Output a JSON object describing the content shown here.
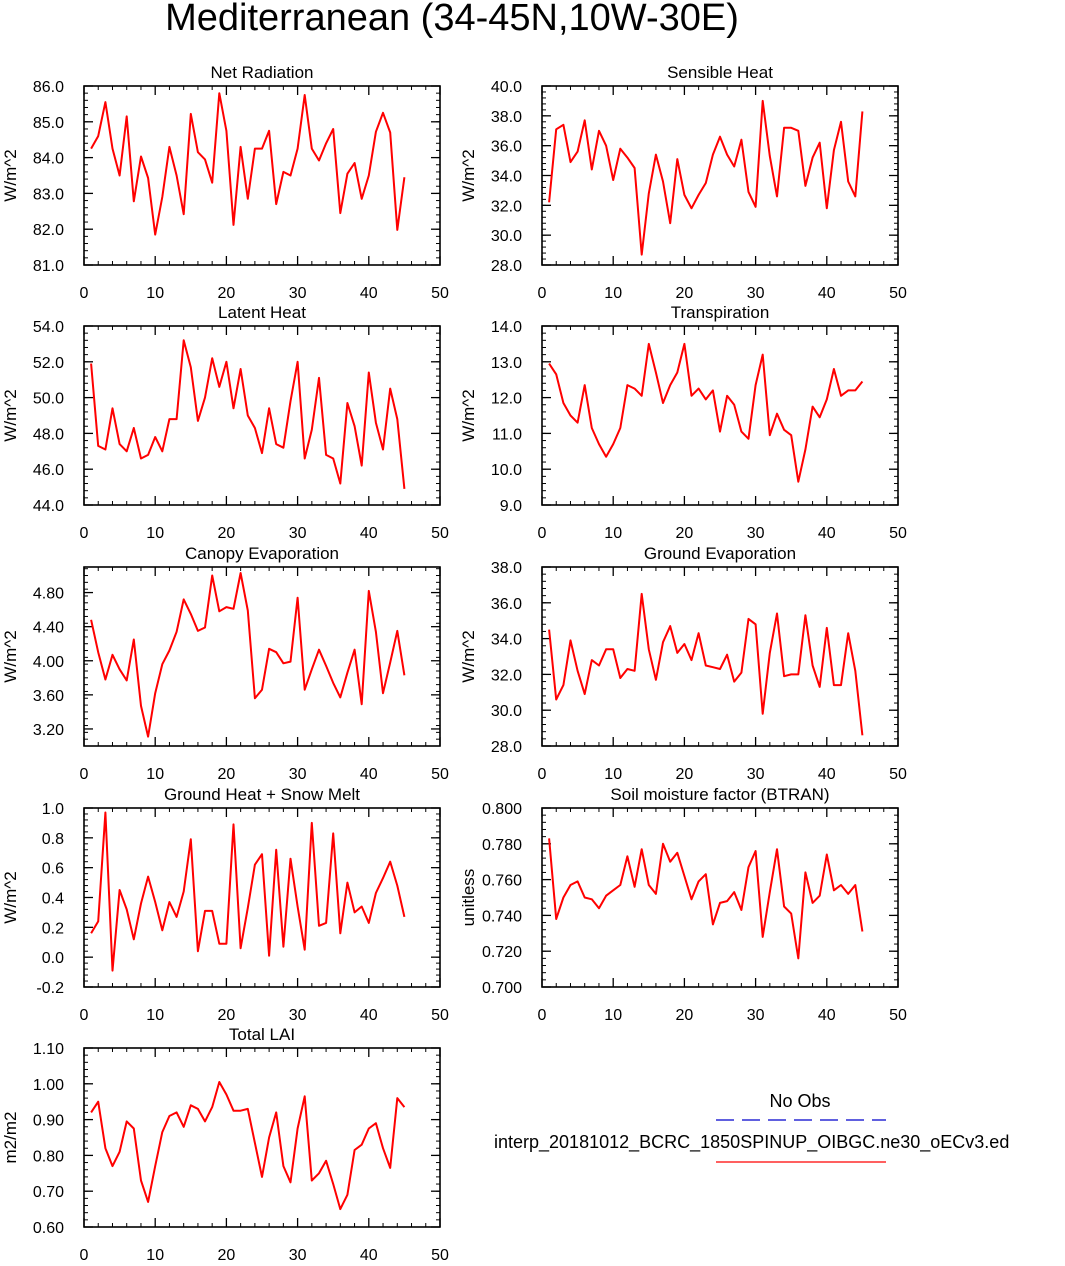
{
  "page": {
    "title": "Mediterranean (34-45N,10W-30E)"
  },
  "legend": {
    "obs_label": "No Obs",
    "model_label": "interp_20181012_BCRC_1850SPINUP_OIBGC.ne30_oECv3.ed",
    "obs_color": "#0000cc",
    "model_color": "#ff0000"
  },
  "chart_data": [
    {
      "type": "line",
      "title": "Net Radiation",
      "ylabel": "W/m^2",
      "xlim": [
        0,
        50
      ],
      "ylim": [
        81.0,
        86.0
      ],
      "xticks": [
        "0",
        "10",
        "20",
        "30",
        "40",
        "50"
      ],
      "yticks": [
        "81.0",
        "82.0",
        "83.0",
        "84.0",
        "85.0",
        "86.0"
      ],
      "x": [
        1,
        2,
        3,
        4,
        5,
        6,
        7,
        8,
        9,
        10,
        11,
        12,
        13,
        14,
        15,
        16,
        17,
        18,
        19,
        20,
        21,
        22,
        23,
        24,
        25,
        26,
        27,
        28,
        29,
        30,
        31,
        32,
        33,
        34,
        35,
        36,
        37,
        38,
        39,
        40,
        41,
        42,
        43,
        44,
        45
      ],
      "series": [
        {
          "values": [
            84.25,
            84.6,
            85.55,
            84.25,
            83.5,
            85.15,
            82.78,
            84.03,
            83.43,
            81.85,
            82.9,
            84.3,
            83.5,
            82.42,
            85.22,
            84.15,
            83.95,
            83.3,
            85.8,
            84.75,
            82.12,
            84.3,
            82.85,
            84.25,
            84.25,
            84.75,
            82.7,
            83.6,
            83.5,
            84.25,
            85.75,
            84.25,
            83.92,
            84.4,
            84.8,
            82.45,
            83.55,
            83.85,
            82.85,
            83.5,
            84.72,
            85.25,
            84.7,
            81.98,
            83.45
          ]
        }
      ]
    },
    {
      "type": "line",
      "title": "Sensible Heat",
      "ylabel": "W/m^2",
      "xlim": [
        0,
        50
      ],
      "ylim": [
        28.0,
        40.0
      ],
      "xticks": [
        "0",
        "10",
        "20",
        "30",
        "40",
        "50"
      ],
      "yticks": [
        "28.0",
        "30.0",
        "32.0",
        "34.0",
        "36.0",
        "38.0",
        "40.0"
      ],
      "x": [
        1,
        2,
        3,
        4,
        5,
        6,
        7,
        8,
        9,
        10,
        11,
        12,
        13,
        14,
        15,
        16,
        17,
        18,
        19,
        20,
        21,
        22,
        23,
        24,
        25,
        26,
        27,
        28,
        29,
        30,
        31,
        32,
        33,
        34,
        35,
        36,
        37,
        38,
        39,
        40,
        41,
        42,
        43,
        44,
        45
      ],
      "series": [
        {
          "values": [
            32.2,
            37.1,
            37.4,
            34.9,
            35.6,
            37.7,
            34.4,
            37.0,
            36.0,
            33.7,
            35.8,
            35.2,
            34.5,
            28.7,
            32.8,
            35.4,
            33.6,
            30.8,
            35.1,
            32.7,
            31.8,
            32.7,
            33.5,
            35.4,
            36.6,
            35.4,
            34.6,
            36.4,
            32.9,
            31.9,
            39.0,
            35.3,
            32.6,
            37.2,
            37.2,
            37.0,
            33.3,
            35.2,
            36.2,
            31.8,
            35.7,
            37.6,
            33.6,
            32.6,
            38.3
          ]
        }
      ]
    },
    {
      "type": "line",
      "title": "Latent Heat",
      "ylabel": "W/m^2",
      "xlim": [
        0,
        50
      ],
      "ylim": [
        44.0,
        54.0
      ],
      "xticks": [
        "0",
        "10",
        "20",
        "30",
        "40",
        "50"
      ],
      "yticks": [
        "44.0",
        "46.0",
        "48.0",
        "50.0",
        "52.0",
        "54.0"
      ],
      "x": [
        1,
        2,
        3,
        4,
        5,
        6,
        7,
        8,
        9,
        10,
        11,
        12,
        13,
        14,
        15,
        16,
        17,
        18,
        19,
        20,
        21,
        22,
        23,
        24,
        25,
        26,
        27,
        28,
        29,
        30,
        31,
        32,
        33,
        34,
        35,
        36,
        37,
        38,
        39,
        40,
        41,
        42,
        43,
        44,
        45
      ],
      "series": [
        {
          "values": [
            51.9,
            47.3,
            47.1,
            49.4,
            47.4,
            47.0,
            48.3,
            46.6,
            46.8,
            47.8,
            47.0,
            48.8,
            48.8,
            53.2,
            51.7,
            48.7,
            50.0,
            52.2,
            50.6,
            52.0,
            49.4,
            51.6,
            49.0,
            48.3,
            46.9,
            49.4,
            47.4,
            47.2,
            49.8,
            52.0,
            46.6,
            48.2,
            51.1,
            46.8,
            46.6,
            45.2,
            49.7,
            48.4,
            46.2,
            51.4,
            48.6,
            47.1,
            50.5,
            48.8,
            44.9
          ]
        }
      ]
    },
    {
      "type": "line",
      "title": "Transpiration",
      "ylabel": "W/m^2",
      "xlim": [
        0,
        50
      ],
      "ylim": [
        9.0,
        14.0
      ],
      "xticks": [
        "0",
        "10",
        "20",
        "30",
        "40",
        "50"
      ],
      "yticks": [
        "9.0",
        "10.0",
        "11.0",
        "12.0",
        "13.0",
        "14.0"
      ],
      "x": [
        1,
        2,
        3,
        4,
        5,
        6,
        7,
        8,
        9,
        10,
        11,
        12,
        13,
        14,
        15,
        16,
        17,
        18,
        19,
        20,
        21,
        22,
        23,
        24,
        25,
        26,
        27,
        28,
        29,
        30,
        31,
        32,
        33,
        34,
        35,
        36,
        37,
        38,
        39,
        40,
        41,
        42,
        43,
        44,
        45
      ],
      "series": [
        {
          "values": [
            12.95,
            12.65,
            11.85,
            11.5,
            11.3,
            12.35,
            11.15,
            10.7,
            10.35,
            10.7,
            11.15,
            12.35,
            12.25,
            12.05,
            13.5,
            12.7,
            11.85,
            12.35,
            12.7,
            13.5,
            12.05,
            12.25,
            11.95,
            12.2,
            11.05,
            12.05,
            11.8,
            11.05,
            10.85,
            12.35,
            13.2,
            10.95,
            11.55,
            11.1,
            10.95,
            9.65,
            10.55,
            11.75,
            11.45,
            11.95,
            12.8,
            12.05,
            12.2,
            12.2,
            12.45
          ]
        }
      ]
    },
    {
      "type": "line",
      "title": "Canopy Evaporation",
      "ylabel": "W/m^2",
      "xlim": [
        0,
        50
      ],
      "ylim": [
        3.0,
        5.1
      ],
      "xticks": [
        "0",
        "10",
        "20",
        "30",
        "40",
        "50"
      ],
      "yticks": [
        "3.20",
        "3.60",
        "4.00",
        "4.40",
        "4.80"
      ],
      "ytick_values": [
        3.2,
        3.6,
        4.0,
        4.4,
        4.8
      ],
      "x": [
        1,
        2,
        3,
        4,
        5,
        6,
        7,
        8,
        9,
        10,
        11,
        12,
        13,
        14,
        15,
        16,
        17,
        18,
        19,
        20,
        21,
        22,
        23,
        24,
        25,
        26,
        27,
        28,
        29,
        30,
        31,
        32,
        33,
        34,
        35,
        36,
        37,
        38,
        39,
        40,
        41,
        42,
        43,
        44,
        45
      ],
      "series": [
        {
          "values": [
            4.48,
            4.1,
            3.78,
            4.07,
            3.9,
            3.77,
            4.25,
            3.47,
            3.11,
            3.62,
            3.96,
            4.12,
            4.34,
            4.72,
            4.55,
            4.35,
            4.39,
            5.0,
            4.58,
            4.63,
            4.61,
            5.03,
            4.59,
            3.56,
            3.66,
            4.14,
            4.1,
            3.97,
            3.99,
            4.74,
            3.66,
            3.9,
            4.13,
            3.94,
            3.74,
            3.57,
            3.86,
            4.13,
            3.49,
            4.82,
            4.34,
            3.62,
            3.98,
            4.35,
            3.83
          ]
        }
      ]
    },
    {
      "type": "line",
      "title": "Ground Evaporation",
      "ylabel": "W/m^2",
      "xlim": [
        0,
        50
      ],
      "ylim": [
        28.0,
        38.0
      ],
      "xticks": [
        "0",
        "10",
        "20",
        "30",
        "40",
        "50"
      ],
      "yticks": [
        "28.0",
        "30.0",
        "32.0",
        "34.0",
        "36.0",
        "38.0"
      ],
      "x": [
        1,
        2,
        3,
        4,
        5,
        6,
        7,
        8,
        9,
        10,
        11,
        12,
        13,
        14,
        15,
        16,
        17,
        18,
        19,
        20,
        21,
        22,
        23,
        24,
        25,
        26,
        27,
        28,
        29,
        30,
        31,
        32,
        33,
        34,
        35,
        36,
        37,
        38,
        39,
        40,
        41,
        42,
        43,
        44,
        45
      ],
      "series": [
        {
          "values": [
            34.5,
            30.6,
            31.4,
            33.9,
            32.2,
            30.9,
            32.8,
            32.5,
            33.4,
            33.4,
            31.8,
            32.3,
            32.2,
            36.5,
            33.4,
            31.7,
            33.8,
            34.7,
            33.2,
            33.7,
            32.8,
            34.3,
            32.5,
            32.4,
            32.3,
            33.1,
            31.6,
            32.1,
            35.1,
            34.8,
            29.8,
            33.2,
            35.4,
            31.9,
            32.0,
            32.0,
            35.3,
            32.5,
            31.3,
            34.6,
            31.4,
            31.4,
            34.3,
            32.2,
            28.6
          ]
        }
      ]
    },
    {
      "type": "line",
      "title": "Ground Heat + Snow Melt",
      "ylabel": "W/m^2",
      "xlim": [
        0,
        50
      ],
      "ylim": [
        -0.2,
        1.0
      ],
      "xticks": [
        "0",
        "10",
        "20",
        "30",
        "40",
        "50"
      ],
      "yticks": [
        "-0.2",
        "0.0",
        "0.2",
        "0.4",
        "0.6",
        "0.8",
        "1.0"
      ],
      "x": [
        1,
        2,
        3,
        4,
        5,
        6,
        7,
        8,
        9,
        10,
        11,
        12,
        13,
        14,
        15,
        16,
        17,
        18,
        19,
        20,
        21,
        22,
        23,
        24,
        25,
        26,
        27,
        28,
        29,
        30,
        31,
        32,
        33,
        34,
        35,
        36,
        37,
        38,
        39,
        40,
        41,
        42,
        43,
        44,
        45
      ],
      "series": [
        {
          "values": [
            0.16,
            0.24,
            0.97,
            -0.09,
            0.45,
            0.32,
            0.12,
            0.36,
            0.54,
            0.37,
            0.18,
            0.37,
            0.27,
            0.44,
            0.79,
            0.04,
            0.31,
            0.31,
            0.09,
            0.09,
            0.89,
            0.06,
            0.33,
            0.62,
            0.69,
            0.01,
            0.72,
            0.07,
            0.66,
            0.34,
            0.05,
            0.9,
            0.21,
            0.23,
            0.83,
            0.16,
            0.5,
            0.3,
            0.34,
            0.23,
            0.43,
            0.53,
            0.64,
            0.48,
            0.27
          ]
        }
      ]
    },
    {
      "type": "line",
      "title": "Soil moisture factor (BTRAN)",
      "ylabel": "unitless",
      "xlim": [
        0,
        50
      ],
      "ylim": [
        0.7,
        0.8
      ],
      "xticks": [
        "0",
        "10",
        "20",
        "30",
        "40",
        "50"
      ],
      "yticks": [
        "0.700",
        "0.720",
        "0.740",
        "0.760",
        "0.780",
        "0.800"
      ],
      "x": [
        1,
        2,
        3,
        4,
        5,
        6,
        7,
        8,
        9,
        10,
        11,
        12,
        13,
        14,
        15,
        16,
        17,
        18,
        19,
        20,
        21,
        22,
        23,
        24,
        25,
        26,
        27,
        28,
        29,
        30,
        31,
        32,
        33,
        34,
        35,
        36,
        37,
        38,
        39,
        40,
        41,
        42,
        43,
        44,
        45
      ],
      "series": [
        {
          "values": [
            0.783,
            0.738,
            0.75,
            0.757,
            0.759,
            0.75,
            0.749,
            0.744,
            0.751,
            0.754,
            0.757,
            0.773,
            0.756,
            0.777,
            0.757,
            0.752,
            0.78,
            0.77,
            0.775,
            0.762,
            0.749,
            0.759,
            0.763,
            0.735,
            0.747,
            0.748,
            0.753,
            0.743,
            0.767,
            0.776,
            0.728,
            0.753,
            0.777,
            0.745,
            0.741,
            0.716,
            0.764,
            0.747,
            0.751,
            0.774,
            0.754,
            0.757,
            0.752,
            0.757,
            0.731
          ]
        }
      ]
    },
    {
      "type": "line",
      "title": "Total LAI",
      "ylabel": "m2/m2",
      "xlim": [
        0,
        50
      ],
      "ylim": [
        0.6,
        1.1
      ],
      "xticks": [
        "0",
        "10",
        "20",
        "30",
        "40",
        "50"
      ],
      "yticks": [
        "0.60",
        "0.70",
        "0.80",
        "0.90",
        "1.00",
        "1.10"
      ],
      "x": [
        1,
        2,
        3,
        4,
        5,
        6,
        7,
        8,
        9,
        10,
        11,
        12,
        13,
        14,
        15,
        16,
        17,
        18,
        19,
        20,
        21,
        22,
        23,
        24,
        25,
        26,
        27,
        28,
        29,
        30,
        31,
        32,
        33,
        34,
        35,
        36,
        37,
        38,
        39,
        40,
        41,
        42,
        43,
        44,
        45
      ],
      "series": [
        {
          "values": [
            0.92,
            0.95,
            0.82,
            0.77,
            0.81,
            0.895,
            0.875,
            0.73,
            0.67,
            0.77,
            0.865,
            0.91,
            0.92,
            0.88,
            0.94,
            0.93,
            0.895,
            0.935,
            1.005,
            0.97,
            0.925,
            0.925,
            0.93,
            0.835,
            0.74,
            0.85,
            0.92,
            0.77,
            0.725,
            0.875,
            0.965,
            0.73,
            0.75,
            0.785,
            0.72,
            0.65,
            0.69,
            0.815,
            0.83,
            0.875,
            0.89,
            0.82,
            0.765,
            0.96,
            0.935
          ]
        }
      ]
    }
  ]
}
